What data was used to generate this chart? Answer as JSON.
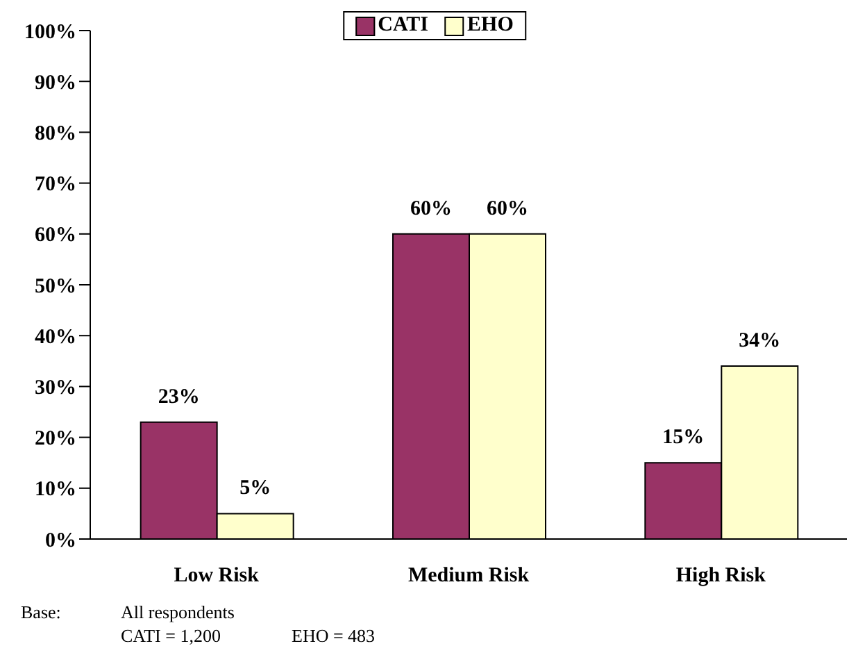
{
  "chart_data": {
    "type": "bar",
    "categories": [
      "Low Risk",
      "Medium Risk",
      "High Risk"
    ],
    "series": [
      {
        "name": "CATI",
        "color": "#993366",
        "values": [
          23,
          60,
          15
        ],
        "value_labels": [
          "23%",
          "60%",
          "15%"
        ]
      },
      {
        "name": "EHO",
        "color": "#ffffcc",
        "values": [
          5,
          60,
          34
        ],
        "value_labels": [
          "5%",
          "60%",
          "34%"
        ]
      }
    ],
    "ylim": [
      0,
      100
    ],
    "yticks": [
      {
        "value": 0,
        "label": "0%"
      },
      {
        "value": 10,
        "label": "10%"
      },
      {
        "value": 20,
        "label": "20%"
      },
      {
        "value": 30,
        "label": "30%"
      },
      {
        "value": 40,
        "label": "40%"
      },
      {
        "value": 50,
        "label": "50%"
      },
      {
        "value": 60,
        "label": "60%"
      },
      {
        "value": 70,
        "label": "70%"
      },
      {
        "value": 80,
        "label": "80%"
      },
      {
        "value": 90,
        "label": "90%"
      },
      {
        "value": 100,
        "label": "100%"
      }
    ],
    "grid": false,
    "legend": "top",
    "annotations": [
      "Base:",
      "All respondents",
      "CATI = 1,200",
      "EHO = 483"
    ]
  }
}
